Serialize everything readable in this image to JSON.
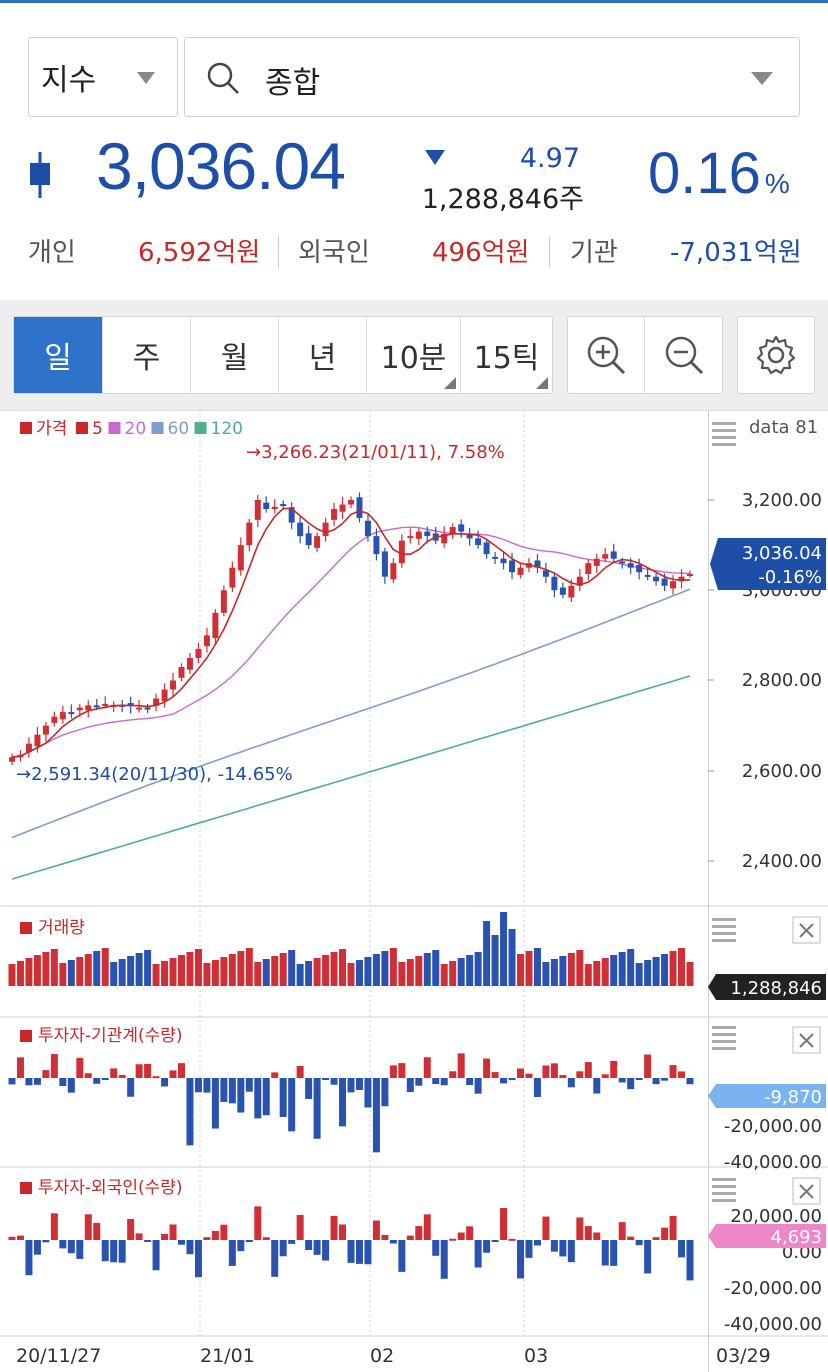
{
  "header": {
    "type_select": "지수",
    "search_value": "종합"
  },
  "quote": {
    "price": "3,036.04",
    "change": "4.97",
    "volume": "1,288,846주",
    "percent": "0.16",
    "percent_unit": "%"
  },
  "investors": [
    {
      "label": "개인",
      "value": "6,592억원",
      "color": "#c8282a"
    },
    {
      "label": "외국인",
      "value": "496억원",
      "color": "#c8282a"
    },
    {
      "label": "기관",
      "value": "-7,031억원",
      "color": "#1d4ea8"
    }
  ],
  "period_tabs": [
    "일",
    "주",
    "월",
    "년",
    "10분",
    "15틱"
  ],
  "active_tab": "일",
  "chart": {
    "legend": [
      {
        "label": "가격",
        "color": "#c8282a"
      },
      {
        "label": "5",
        "color": "#c8282a"
      },
      {
        "label": "20",
        "color": "#c76bd2"
      },
      {
        "label": "60",
        "color": "#7e9fcd"
      },
      {
        "label": "120",
        "color": "#4fb08f"
      }
    ],
    "data_count": "data 81",
    "max_label": "→3,266.23(21/01/11), 7.58%",
    "min_label": "→2,591.34(20/11/30), -14.65%",
    "y_ticks": [
      "3,200.00",
      "3,000.00",
      "2,800.00",
      "2,600.00",
      "2,400.00"
    ],
    "current_price": "3,036.04",
    "current_pct": "-0.16%",
    "volume_title": "거래량",
    "volume_current": "1,288,846",
    "inst_title": "투자자-기관계(수량)",
    "inst_current": "-9,870",
    "inst_ticks": [
      "-20,000.00",
      "-40,000.00"
    ],
    "foreign_title": "투자자-외국인(수량)",
    "foreign_current": "4,693",
    "foreign_ticks": [
      "20,000.00",
      "0.00",
      "-20,000.00",
      "-40,000.00"
    ],
    "x_labels": [
      "20/11/27",
      "21/01",
      "02",
      "03",
      "03/29"
    ],
    "colors": {
      "up": "#d03035",
      "down": "#2a52b0",
      "ma5": "#c8282a",
      "ma20": "#c76bd2",
      "ma60": "#7e9fcd",
      "ma120": "#4fb08f"
    }
  }
}
